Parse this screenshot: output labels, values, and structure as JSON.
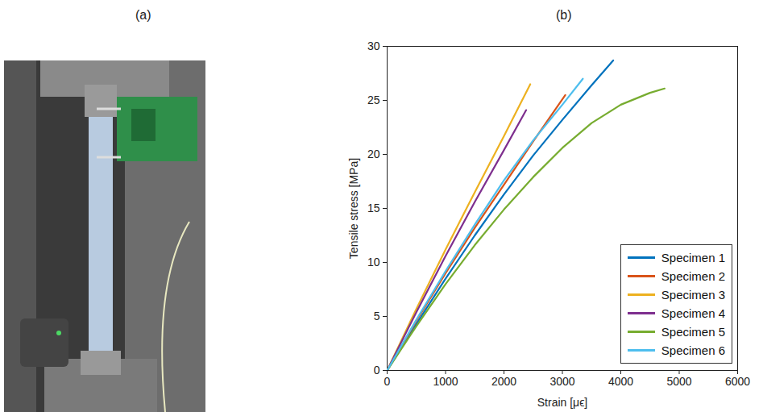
{
  "panel_labels": [
    "(a)",
    "(b)"
  ],
  "chart_data": {
    "type": "line",
    "x_label": "Strain [μϵ]",
    "y_label": "Tensile stress [MPa]",
    "xlim": [
      0,
      6000
    ],
    "xticks": [
      0,
      1000,
      2000,
      3000,
      4000,
      5000,
      6000
    ],
    "ylim": [
      0,
      30
    ],
    "yticks": [
      0,
      5,
      10,
      15,
      20,
      25,
      30
    ],
    "grid": false,
    "legend": "lower right",
    "series": [
      {
        "name": "Specimen 1",
        "color": "#0072BD",
        "x": [
          0,
          500,
          1000,
          1500,
          2000,
          2500,
          3000,
          3500,
          3870
        ],
        "values": [
          0,
          4.3,
          8.5,
          12.5,
          16.3,
          19.9,
          23.2,
          26.4,
          28.7
        ]
      },
      {
        "name": "Specimen 2",
        "color": "#D95319",
        "x": [
          0,
          500,
          1000,
          1500,
          2000,
          2500,
          3050
        ],
        "values": [
          0,
          4.6,
          9.0,
          13.2,
          17.2,
          21.2,
          25.5
        ]
      },
      {
        "name": "Specimen 3",
        "color": "#EDB120",
        "x": [
          0,
          500,
          1000,
          1500,
          2000,
          2450
        ],
        "values": [
          0,
          5.7,
          11.2,
          16.5,
          21.7,
          26.5
        ]
      },
      {
        "name": "Specimen 4",
        "color": "#7E2F8E",
        "x": [
          0,
          500,
          1000,
          1500,
          2000,
          2380
        ],
        "values": [
          0,
          5.4,
          10.6,
          15.6,
          20.4,
          24.1
        ]
      },
      {
        "name": "Specimen 5",
        "color": "#77AC30",
        "x": [
          0,
          500,
          1000,
          1500,
          2000,
          2500,
          3000,
          3500,
          4000,
          4500,
          4750
        ],
        "values": [
          0,
          4.1,
          8.0,
          11.6,
          14.9,
          17.9,
          20.6,
          22.9,
          24.6,
          25.7,
          26.1
        ]
      },
      {
        "name": "Specimen 6",
        "color": "#4DBEEE",
        "x": [
          0,
          500,
          1000,
          1500,
          2000,
          2500,
          3000,
          3350
        ],
        "values": [
          0,
          4.7,
          9.2,
          13.5,
          17.6,
          21.3,
          24.6,
          27.0
        ]
      }
    ]
  }
}
